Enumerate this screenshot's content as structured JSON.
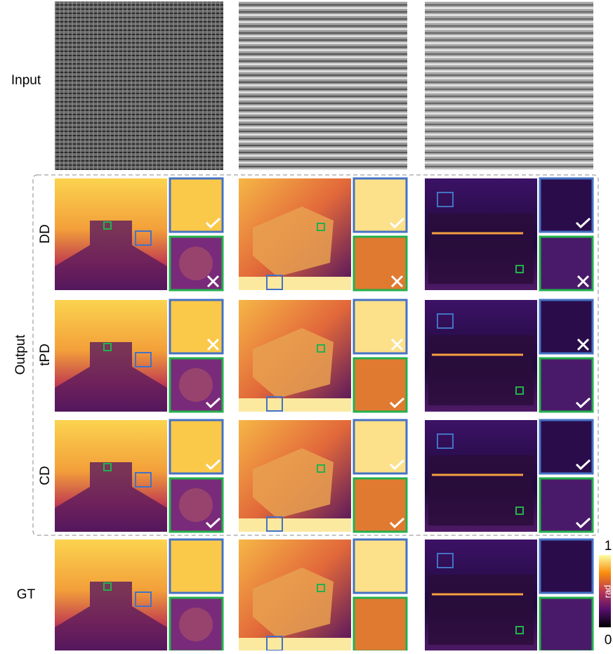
{
  "labels": {
    "input": "Input",
    "output": "Output",
    "rows": [
      "DD",
      "tPD",
      "CD"
    ],
    "gt": "GT"
  },
  "colorbar": {
    "max": "1",
    "min": "0",
    "unit": "rad"
  }
}
